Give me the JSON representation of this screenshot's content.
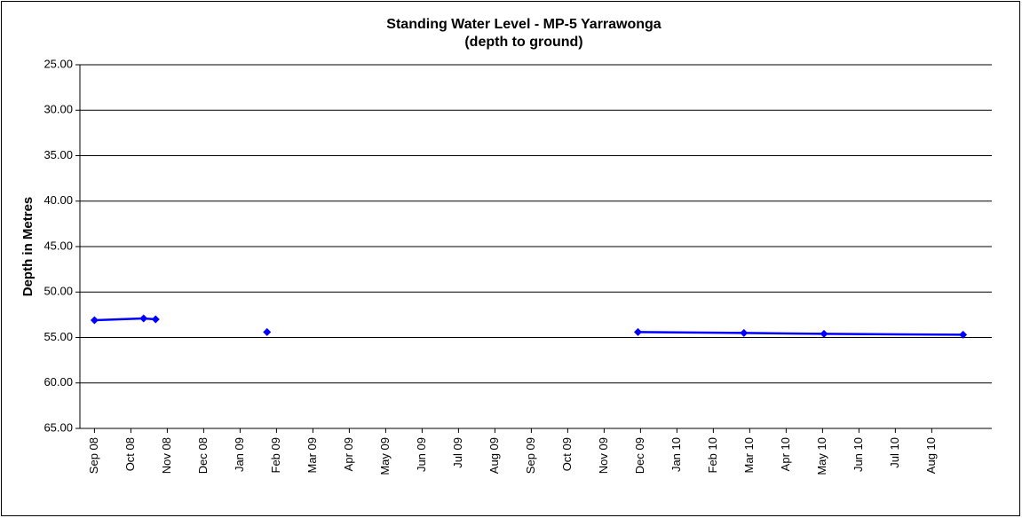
{
  "chart_data": {
    "type": "line",
    "title": "Standing Water Level - MP-5 Yarrawonga",
    "subtitle": "(depth to ground)",
    "y_label": "Depth in Metres",
    "y_inverted": true,
    "grid": true,
    "ylim": [
      25,
      65
    ],
    "yticks": [
      {
        "value": 25,
        "label": "25.00"
      },
      {
        "value": 30,
        "label": "30.00"
      },
      {
        "value": 35,
        "label": "35.00"
      },
      {
        "value": 40,
        "label": "40.00"
      },
      {
        "value": 45,
        "label": "45.00"
      },
      {
        "value": 50,
        "label": "50.00"
      },
      {
        "value": 55,
        "label": "55.00"
      },
      {
        "value": 60,
        "label": "60.00"
      },
      {
        "value": 65,
        "label": "65.00"
      }
    ],
    "xlim": [
      -0.4,
      24.65
    ],
    "xticks": [
      {
        "value": 0,
        "label": "Sep 08"
      },
      {
        "value": 1,
        "label": "Oct 08"
      },
      {
        "value": 2,
        "label": "Nov 08"
      },
      {
        "value": 3,
        "label": "Dec 08"
      },
      {
        "value": 4,
        "label": "Jan 09"
      },
      {
        "value": 5,
        "label": "Feb 09"
      },
      {
        "value": 6,
        "label": "Mar 09"
      },
      {
        "value": 7,
        "label": "Apr 09"
      },
      {
        "value": 8,
        "label": "May 09"
      },
      {
        "value": 9,
        "label": "Jun 09"
      },
      {
        "value": 10,
        "label": "Jul 09"
      },
      {
        "value": 11,
        "label": "Aug 09"
      },
      {
        "value": 12,
        "label": "Sep 09"
      },
      {
        "value": 13,
        "label": "Oct 09"
      },
      {
        "value": 14,
        "label": "Nov 09"
      },
      {
        "value": 15,
        "label": "Dec 09"
      },
      {
        "value": 16,
        "label": "Jan 10"
      },
      {
        "value": 17,
        "label": "Feb 10"
      },
      {
        "value": 18,
        "label": "Mar 10"
      },
      {
        "value": 19,
        "label": "Apr 10"
      },
      {
        "value": 20,
        "label": "May 10"
      },
      {
        "value": 21,
        "label": "Jun 10"
      },
      {
        "value": 22,
        "label": "Jul 10"
      },
      {
        "value": 23,
        "label": "Aug 10"
      }
    ],
    "series": [
      {
        "color": "#0000ff",
        "x": [
          0,
          1.35,
          1.68,
          null,
          4.74,
          null,
          14.93,
          17.84,
          20.04,
          23.86
        ],
        "values": [
          53.1,
          52.9,
          53.0,
          null,
          54.4,
          null,
          54.4,
          54.5,
          54.6,
          54.7
        ]
      }
    ]
  }
}
